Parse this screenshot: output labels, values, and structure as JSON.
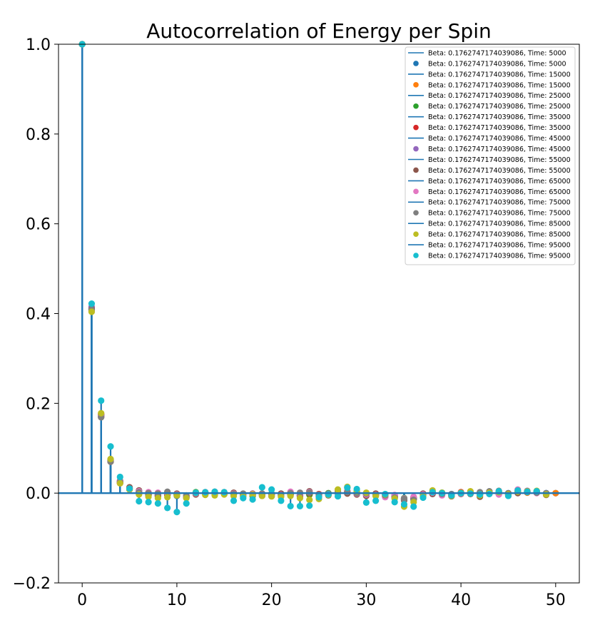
{
  "chart_data": {
    "type": "stem",
    "title": "Autocorrelation of Energy per Spin",
    "xlabel": "",
    "ylabel": "",
    "xlim": [
      -2.5,
      52.5
    ],
    "ylim": [
      -0.2,
      1.0
    ],
    "xticks": [
      0,
      10,
      20,
      30,
      40,
      50
    ],
    "yticks": [
      -0.2,
      0.0,
      0.2,
      0.4,
      0.6,
      0.8,
      1.0
    ],
    "xtick_labels": [
      "0",
      "10",
      "20",
      "30",
      "40",
      "50"
    ],
    "ytick_labels": [
      "−0.2",
      "0.0",
      "0.2",
      "0.4",
      "0.6",
      "0.8",
      "1.0"
    ],
    "stem_color": "#1f77b4",
    "legend": {
      "placement": "top-right",
      "entries": [
        {
          "label": "Beta: 0.1762747174039086, Time: 5000",
          "kind": "line",
          "color": "#1f77b4"
        },
        {
          "label": "Beta: 0.1762747174039086, Time: 5000",
          "kind": "marker",
          "color": "#1f77b4"
        },
        {
          "label": "Beta: 0.1762747174039086, Time: 15000",
          "kind": "line",
          "color": "#1f77b4"
        },
        {
          "label": "Beta: 0.1762747174039086, Time: 15000",
          "kind": "marker",
          "color": "#ff7f0e"
        },
        {
          "label": "Beta: 0.1762747174039086, Time: 25000",
          "kind": "line",
          "color": "#1f77b4"
        },
        {
          "label": "Beta: 0.1762747174039086, Time: 25000",
          "kind": "marker",
          "color": "#2ca02c"
        },
        {
          "label": "Beta: 0.1762747174039086, Time: 35000",
          "kind": "line",
          "color": "#1f77b4"
        },
        {
          "label": "Beta: 0.1762747174039086, Time: 35000",
          "kind": "marker",
          "color": "#d62728"
        },
        {
          "label": "Beta: 0.1762747174039086, Time: 45000",
          "kind": "line",
          "color": "#1f77b4"
        },
        {
          "label": "Beta: 0.1762747174039086, Time: 45000",
          "kind": "marker",
          "color": "#9467bd"
        },
        {
          "label": "Beta: 0.1762747174039086, Time: 55000",
          "kind": "line",
          "color": "#1f77b4"
        },
        {
          "label": "Beta: 0.1762747174039086, Time: 55000",
          "kind": "marker",
          "color": "#8c564b"
        },
        {
          "label": "Beta: 0.1762747174039086, Time: 65000",
          "kind": "line",
          "color": "#1f77b4"
        },
        {
          "label": "Beta: 0.1762747174039086, Time: 65000",
          "kind": "marker",
          "color": "#e377c2"
        },
        {
          "label": "Beta: 0.1762747174039086, Time: 75000",
          "kind": "line",
          "color": "#1f77b4"
        },
        {
          "label": "Beta: 0.1762747174039086, Time: 75000",
          "kind": "marker",
          "color": "#7f7f7f"
        },
        {
          "label": "Beta: 0.1762747174039086, Time: 85000",
          "kind": "line",
          "color": "#1f77b4"
        },
        {
          "label": "Beta: 0.1762747174039086, Time: 85000",
          "kind": "marker",
          "color": "#bcbd22"
        },
        {
          "label": "Beta: 0.1762747174039086, Time: 95000",
          "kind": "line",
          "color": "#1f77b4"
        },
        {
          "label": "Beta: 0.1762747174039086, Time: 95000",
          "kind": "marker",
          "color": "#17becf"
        }
      ]
    },
    "series": [
      {
        "time": 5000,
        "color": "#1f77b4",
        "x_max": 50,
        "values": [
          1.0,
          0.41,
          0.172,
          0.072,
          0.025,
          0.01,
          0.0,
          -0.003,
          -0.005,
          -0.004,
          -0.006,
          -0.006,
          0.001,
          0.0,
          0.0,
          0.0,
          -0.002,
          -0.003,
          -0.004,
          -0.001,
          -0.002,
          -0.004,
          -0.003,
          -0.005,
          -0.002,
          -0.003,
          -0.002,
          0.0,
          0.003,
          0.002,
          -0.002,
          -0.004,
          -0.004,
          -0.008,
          -0.012,
          -0.012,
          -0.004,
          0.002,
          0.0,
          -0.002,
          0.0,
          0.001,
          0.0,
          0.001,
          0.002,
          0.0,
          0.003,
          0.002,
          0.003,
          0.0,
          0.0
        ]
      },
      {
        "time": 15000,
        "color": "#ff7f0e",
        "x_max": 50,
        "values": [
          1.0,
          0.405,
          0.175,
          0.07,
          0.022,
          0.008,
          0.002,
          -0.004,
          -0.006,
          -0.005,
          -0.005,
          -0.005,
          0.0,
          0.001,
          0.001,
          -0.001,
          -0.001,
          -0.004,
          -0.005,
          -0.002,
          -0.003,
          -0.005,
          -0.002,
          -0.006,
          -0.004,
          -0.004,
          -0.001,
          0.001,
          0.004,
          0.001,
          -0.003,
          -0.005,
          -0.005,
          -0.009,
          -0.013,
          -0.014,
          -0.005,
          0.003,
          -0.001,
          -0.003,
          0.001,
          0.002,
          -0.001,
          0.0,
          0.003,
          -0.001,
          0.002,
          0.001,
          0.002,
          -0.001,
          0.0
        ]
      },
      {
        "time": 25000,
        "color": "#2ca02c",
        "x_max": 49,
        "values": [
          1.0,
          0.408,
          0.173,
          0.073,
          0.024,
          0.009,
          0.001,
          -0.005,
          -0.007,
          -0.003,
          -0.004,
          -0.007,
          0.002,
          0.0,
          -0.001,
          0.001,
          -0.003,
          -0.002,
          -0.006,
          -0.003,
          -0.001,
          -0.006,
          -0.001,
          -0.004,
          -0.003,
          -0.005,
          0.0,
          0.002,
          0.002,
          0.003,
          -0.001,
          -0.006,
          -0.003,
          -0.01,
          -0.011,
          -0.013,
          -0.006,
          0.001,
          0.001,
          -0.004,
          -0.001,
          0.0,
          -0.002,
          0.002,
          0.001,
          -0.002,
          0.004,
          0.003,
          0.001,
          -0.002
        ]
      },
      {
        "time": 35000,
        "color": "#d62728",
        "x_max": 49,
        "values": [
          1.0,
          0.412,
          0.176,
          0.071,
          0.023,
          0.011,
          0.003,
          -0.002,
          -0.004,
          -0.002,
          -0.003,
          -0.008,
          0.0,
          0.002,
          0.0,
          -0.002,
          -0.002,
          -0.003,
          -0.003,
          -0.004,
          -0.004,
          -0.003,
          -0.004,
          -0.007,
          0.0,
          -0.002,
          -0.003,
          0.003,
          0.001,
          0.0,
          -0.004,
          -0.003,
          -0.006,
          -0.007,
          -0.014,
          -0.011,
          -0.003,
          0.0,
          -0.002,
          -0.005,
          0.002,
          0.001,
          -0.004,
          0.001,
          0.0,
          -0.003,
          0.002,
          0.004,
          0.004,
          -0.002
        ]
      },
      {
        "time": 45000,
        "color": "#9467bd",
        "x_max": 49,
        "values": [
          1.0,
          0.415,
          0.174,
          0.074,
          0.026,
          0.012,
          0.005,
          0.0,
          -0.002,
          0.001,
          -0.002,
          -0.009,
          -0.002,
          0.001,
          0.002,
          0.0,
          0.0,
          -0.005,
          -0.002,
          -0.005,
          -0.006,
          -0.002,
          0.001,
          -0.005,
          0.003,
          -0.006,
          -0.004,
          0.001,
          0.0,
          -0.002,
          -0.005,
          -0.002,
          -0.007,
          -0.006,
          -0.015,
          -0.01,
          -0.002,
          -0.001,
          -0.003,
          -0.006,
          0.0,
          -0.001,
          -0.003,
          0.003,
          -0.001,
          -0.004,
          0.001,
          0.005,
          0.003,
          -0.003
        ]
      },
      {
        "time": 55000,
        "color": "#8c564b",
        "x_max": 49,
        "values": [
          1.0,
          0.41,
          0.17,
          0.075,
          0.027,
          0.013,
          0.006,
          0.001,
          0.0,
          0.002,
          -0.001,
          -0.01,
          -0.003,
          -0.001,
          0.003,
          0.002,
          0.001,
          -0.006,
          -0.001,
          -0.006,
          -0.007,
          -0.001,
          0.002,
          -0.003,
          0.004,
          -0.007,
          -0.005,
          0.0,
          -0.001,
          -0.003,
          -0.006,
          -0.001,
          -0.008,
          -0.005,
          -0.016,
          -0.009,
          -0.001,
          -0.002,
          -0.004,
          -0.007,
          -0.002,
          -0.002,
          -0.008,
          0.002,
          -0.002,
          -0.005,
          0.0,
          0.004,
          0.002,
          -0.004
        ]
      },
      {
        "time": 65000,
        "color": "#e377c2",
        "x_max": 49,
        "values": [
          1.0,
          0.406,
          0.171,
          0.072,
          0.025,
          0.01,
          0.004,
          0.002,
          0.001,
          0.0,
          -0.003,
          -0.007,
          -0.001,
          0.0,
          0.001,
          0.001,
          -0.001,
          -0.004,
          -0.002,
          -0.002,
          -0.005,
          -0.004,
          0.003,
          -0.001,
          0.002,
          -0.004,
          -0.002,
          0.002,
          0.005,
          -0.001,
          -0.003,
          -0.004,
          -0.009,
          -0.004,
          -0.012,
          -0.008,
          -0.003,
          0.001,
          -0.005,
          -0.004,
          -0.001,
          0.003,
          -0.002,
          -0.002,
          -0.003,
          -0.006,
          0.008,
          0.003,
          0.0,
          -0.001
        ]
      },
      {
        "time": 75000,
        "color": "#7f7f7f",
        "x_max": 49,
        "values": [
          1.0,
          0.409,
          0.169,
          0.07,
          0.024,
          0.009,
          0.002,
          0.0,
          -0.001,
          0.003,
          -0.004,
          -0.006,
          0.0,
          -0.002,
          0.002,
          -0.001,
          -0.002,
          -0.001,
          -0.004,
          -0.001,
          -0.002,
          -0.005,
          0.0,
          0.001,
          0.001,
          -0.003,
          -0.001,
          0.004,
          0.002,
          0.0,
          -0.001,
          -0.005,
          -0.005,
          -0.01,
          -0.013,
          -0.015,
          -0.005,
          0.002,
          -0.002,
          -0.003,
          0.0,
          0.001,
          0.002,
          0.004,
          0.005,
          -0.002,
          0.005,
          0.002,
          0.001,
          0.0
        ]
      },
      {
        "time": 85000,
        "color": "#bcbd22",
        "x_max": 49,
        "values": [
          1.0,
          0.404,
          0.178,
          0.076,
          0.022,
          0.008,
          -0.003,
          -0.008,
          -0.011,
          -0.009,
          -0.005,
          -0.011,
          0.001,
          -0.004,
          -0.005,
          -0.003,
          -0.006,
          -0.007,
          -0.003,
          -0.006,
          -0.007,
          -0.008,
          -0.006,
          -0.011,
          -0.015,
          -0.013,
          -0.004,
          0.008,
          0.014,
          0.004,
          0.001,
          -0.006,
          -0.003,
          -0.012,
          -0.03,
          -0.02,
          -0.007,
          0.006,
          0.001,
          -0.006,
          0.001,
          0.004,
          -0.005,
          0.001,
          0.002,
          -0.003,
          0.003,
          0.004,
          0.005,
          -0.003
        ]
      },
      {
        "time": 95000,
        "color": "#17becf",
        "x_max": 48,
        "values": [
          1.0,
          0.422,
          0.206,
          0.104,
          0.036,
          0.01,
          -0.018,
          -0.02,
          -0.023,
          -0.033,
          -0.042,
          -0.023,
          0.001,
          0.002,
          0.003,
          0.002,
          -0.017,
          -0.011,
          -0.014,
          0.013,
          0.008,
          -0.017,
          -0.029,
          -0.029,
          -0.028,
          -0.009,
          -0.003,
          -0.007,
          0.012,
          0.009,
          -0.021,
          -0.017,
          -0.002,
          -0.02,
          -0.025,
          -0.03,
          -0.01,
          0.002,
          0.0,
          -0.005,
          0.0,
          -0.001,
          -0.003,
          -0.002,
          0.004,
          -0.006,
          0.006,
          0.003,
          0.004
        ]
      }
    ]
  }
}
